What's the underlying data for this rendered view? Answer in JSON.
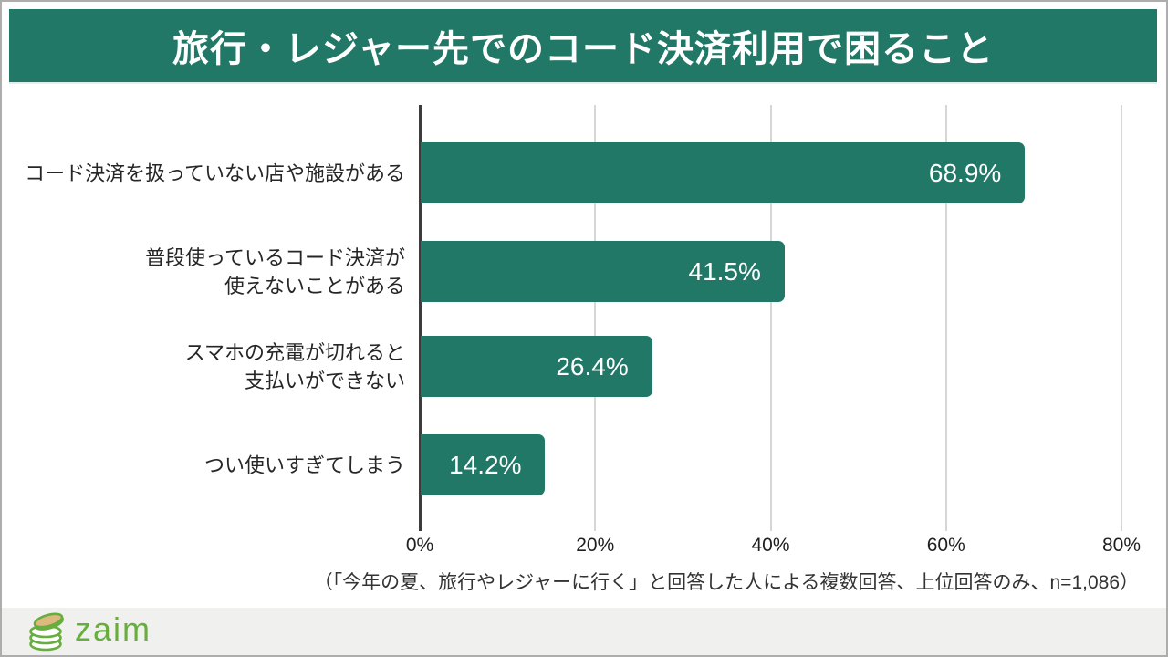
{
  "header": {
    "title": "旅行・レジャー先でのコード決済利用で困ること"
  },
  "chart_data": {
    "type": "bar",
    "orientation": "horizontal",
    "title": "旅行・レジャー先でのコード決済利用で困ること",
    "categories": [
      "コード決済を扱っていない店や施設がある",
      "普段使っているコード決済が使えないことがある",
      "スマホの充電が切れると支払いができない",
      "つい使いすぎてしまう"
    ],
    "values": [
      68.9,
      41.5,
      26.4,
      14.2
    ],
    "rows": [
      {
        "label_lines": [
          "コード決済を扱っていない店や施設がある"
        ],
        "value": 68.9,
        "value_label": "68.9%"
      },
      {
        "label_lines": [
          "普段使っているコード決済が",
          "使えないことがある"
        ],
        "value": 41.5,
        "value_label": "41.5%"
      },
      {
        "label_lines": [
          "スマホの充電が切れると",
          "支払いができない"
        ],
        "value": 26.4,
        "value_label": "26.4%"
      },
      {
        "label_lines": [
          "つい使いすぎてしまう"
        ],
        "value": 14.2,
        "value_label": "14.2%"
      }
    ],
    "xlim": [
      0,
      80
    ],
    "x_ticks": [
      {
        "value": 0,
        "label": "0%"
      },
      {
        "value": 20,
        "label": "20%"
      },
      {
        "value": 40,
        "label": "40%"
      },
      {
        "value": 60,
        "label": "60%"
      },
      {
        "value": 80,
        "label": "80%"
      }
    ],
    "grid": true,
    "legend": false,
    "bar_color": "#217867",
    "value_label_color": "#ffffff"
  },
  "footnote": {
    "text": "（「今年の夏、旅行やレジャーに行く」と回答した人による複数回答、上位回答のみ、n=1,086）"
  },
  "footer": {
    "logo_text": "zaim"
  },
  "colors": {
    "banner_bg": "#217867",
    "banner_text": "#ffffff",
    "bar": "#217867",
    "gridline": "#d6d6d6",
    "axis": "#3c3c3c",
    "label_text": "#262626",
    "footer_bg": "#f0f0ee",
    "logo_green": "#68ae3e",
    "coin_tan": "#ddb97d"
  }
}
